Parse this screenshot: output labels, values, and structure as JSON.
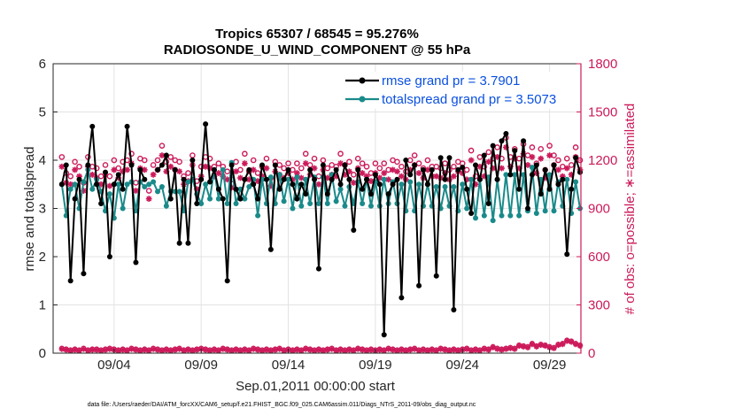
{
  "chart_data": {
    "type": "line",
    "title_line1": "Tropics 65307 / 68545 = 95.276%",
    "title_line2": "RADIOSONDE_U_WIND_COMPONENT @ 55 hPa",
    "xlabel": "Sep.01,2011 00:00:00 start",
    "ylabel_left": "rmse and totalspread",
    "ylabel_right": "# of obs: o=possible; ∗=assimilated",
    "xlim": [
      0.5,
      30.8
    ],
    "ylim_left": [
      0,
      6
    ],
    "ylim_right": [
      0,
      1800
    ],
    "x_ticks": [
      {
        "x": 4,
        "label": "09/04"
      },
      {
        "x": 9,
        "label": "09/09"
      },
      {
        "x": 14,
        "label": "09/14"
      },
      {
        "x": 19,
        "label": "09/19"
      },
      {
        "x": 24,
        "label": "09/24"
      },
      {
        "x": 29,
        "label": "09/29"
      }
    ],
    "y_ticks_left": [
      "0",
      "1",
      "2",
      "3",
      "4",
      "5",
      "6"
    ],
    "y_ticks_right": [
      "0",
      "300",
      "600",
      "900",
      "1200",
      "1500",
      "1800"
    ],
    "legend": [
      {
        "label": "rmse grand pr = 3.7901",
        "color": "#000000"
      },
      {
        "label": "totalspread grand pr = 3.5073",
        "color": "#1a8a8a"
      }
    ],
    "footer": "data file: /Users/raeder/DAI/ATM_forcXX/CAM6_setup/f.e21.FHIST_BGC.f09_025.CAM6assim.011/Diags_NTrS_2011-09/obs_diag_output.nc",
    "colors": {
      "rmse": "#000000",
      "spread": "#1a8a8a",
      "obs": "#cc1a5a"
    },
    "x": [
      1.0,
      1.25,
      1.5,
      1.75,
      2.0,
      2.25,
      2.5,
      2.75,
      3.0,
      3.25,
      3.5,
      3.75,
      4.0,
      4.25,
      4.5,
      4.75,
      5.0,
      5.25,
      5.5,
      5.75,
      6.0,
      6.25,
      6.5,
      6.75,
      7.0,
      7.25,
      7.5,
      7.75,
      8.0,
      8.25,
      8.5,
      8.75,
      9.0,
      9.25,
      9.5,
      9.75,
      10.0,
      10.25,
      10.5,
      10.75,
      11.0,
      11.25,
      11.5,
      11.75,
      12.0,
      12.25,
      12.5,
      12.75,
      13.0,
      13.25,
      13.5,
      13.75,
      14.0,
      14.25,
      14.5,
      14.75,
      15.0,
      15.25,
      15.5,
      15.75,
      16.0,
      16.25,
      16.5,
      16.75,
      17.0,
      17.25,
      17.5,
      17.75,
      18.0,
      18.25,
      18.5,
      18.75,
      19.0,
      19.25,
      19.5,
      19.75,
      20.0,
      20.25,
      20.5,
      20.75,
      21.0,
      21.25,
      21.5,
      21.75,
      22.0,
      22.25,
      22.5,
      22.75,
      23.0,
      23.25,
      23.5,
      23.75,
      24.0,
      24.25,
      24.5,
      24.75,
      25.0,
      25.25,
      25.5,
      25.75,
      26.0,
      26.25,
      26.5,
      26.75,
      27.0,
      27.25,
      27.5,
      27.75,
      28.0,
      28.25,
      28.5,
      28.75,
      29.0,
      29.25,
      29.5,
      29.75,
      30.0,
      30.25,
      30.5,
      30.75
    ],
    "rmse": [
      3.5,
      3.9,
      1.5,
      3.2,
      3.6,
      1.65,
      3.9,
      4.7,
      3.5,
      3.1,
      3.75,
      2.0,
      3.5,
      3.7,
      3.4,
      4.7,
      3.9,
      1.88,
      3.8,
      3.6,
      null,
      null,
      3.8,
      3.9,
      4.1,
      3.2,
      3.8,
      2.28,
      3.6,
      2.28,
      4.0,
      3.1,
      3.6,
      4.75,
      3.55,
      3.8,
      3.4,
      3.2,
      1.5,
      3.9,
      3.4,
      3.2,
      3.6,
      3.8,
      3.5,
      3.2,
      3.9,
      3.6,
      2.15,
      3.9,
      3.4,
      3.6,
      3.8,
      3.5,
      3.2,
      3.5,
      3.3,
      3.8,
      3.6,
      1.75,
      3.9,
      3.3,
      3.6,
      3.8,
      3.5,
      3.9,
      3.6,
      2.55,
      3.8,
      3.4,
      3.6,
      3.3,
      3.7,
      3.5,
      0.38,
      3.3,
      3.5,
      3.6,
      1.15,
      4.0,
      3.7,
      3.9,
      1.4,
      3.8,
      3.5,
      3.8,
      1.6,
      4.05,
      3.6,
      4.05,
      0.9,
      3.8,
      3.85,
      3.4,
      2.9,
      3.9,
      3.6,
      4.1,
      3.1,
      4.3,
      3.6,
      4.4,
      4.55,
      3.7,
      4.2,
      3.4,
      4.4,
      3.0,
      3.7,
      3.9,
      3.3,
      3.8,
      3.4,
      3.9,
      3.5,
      3.6,
      2.05,
      3.4,
      4.05,
      3.75,
      3.35,
      3.15
    ],
    "spread": [
      3.5,
      2.85,
      3.4,
      3.5,
      3.0,
      3.55,
      3.8,
      3.4,
      3.6,
      3.35,
      2.95,
      3.3,
      2.8,
      3.5,
      3.0,
      3.5,
      3.55,
      2.95,
      3.55,
      3.45,
      3.5,
      3.55,
      3.35,
      3.45,
      3.05,
      3.35,
      3.35,
      3.35,
      2.95,
      3.55,
      3.6,
      3.3,
      3.1,
      3.5,
      3.2,
      3.8,
      3.2,
      3.8,
      3.1,
      3.95,
      3.1,
      3.4,
      3.2,
      3.45,
      3.6,
      2.85,
      3.6,
      3.1,
      3.65,
      3.1,
      3.7,
      3.15,
      3.6,
      3.0,
      3.65,
      3.05,
      3.6,
      3.1,
      3.65,
      3.1,
      3.65,
      3.1,
      3.7,
      3.15,
      3.4,
      3.05,
      3.45,
      3.1,
      3.55,
      3.1,
      3.6,
      3.05,
      3.55,
      3.05,
      3.6,
      3.1,
      3.55,
      3.1,
      3.5,
      2.95,
      3.55,
      2.95,
      3.5,
      3.05,
      3.5,
      3.05,
      3.45,
      3.0,
      3.45,
      3.05,
      3.45,
      2.95,
      3.5,
      3.0,
      3.6,
      2.8,
      3.6,
      2.85,
      3.65,
      2.75,
      3.6,
      2.85,
      3.7,
      2.85,
      3.7,
      2.85,
      3.7,
      2.95,
      3.85,
      2.9,
      3.6,
      2.95,
      3.7,
      2.95,
      3.55,
      3.05,
      3.6,
      2.9,
      3.55,
      3.0,
      3.45,
      2.9
    ],
    "obs_possible": [
      1220,
      1120,
      1100,
      1190,
      1160,
      1060,
      1220,
      1160,
      1150,
      1100,
      1170,
      1100,
      1200,
      1150,
      1190,
      1200,
      1240,
      1060,
      1210,
      1200,
      1010,
      1170,
      1200,
      1290,
      1190,
      1220,
      1200,
      1190,
      1100,
      1120,
      1230,
      1070,
      1160,
      1220,
      1210,
      1160,
      1180,
      1160,
      1130,
      1080,
      1190,
      1140,
      1240,
      1130,
      1200,
      1120,
      1160,
      1210,
      1090,
      1190,
      1170,
      1150,
      1180,
      1140,
      1180,
      1150,
      1240,
      1170,
      1210,
      1100,
      1200,
      1150,
      1170,
      1160,
      1240,
      1170,
      1190,
      1110,
      1210,
      1180,
      1160,
      1120,
      1180,
      1150,
      1180,
      1140,
      1200,
      1190,
      1160,
      1130,
      1200,
      1230,
      1180,
      1150,
      1200,
      1160,
      1160,
      1150,
      1180,
      1140,
      1160,
      1190,
      1180,
      1140,
      1260,
      1100,
      1220,
      1160,
      1250,
      1210,
      1280,
      1210,
      1340,
      1220,
      1270,
      1210,
      1300,
      1230,
      1280,
      1180,
      1270,
      1140,
      1290,
      1230,
      1200,
      1160,
      1210,
      1170,
      1280,
      1200,
      1130,
      1180
    ],
    "obs_assimilated": [
      1160,
      1060,
      1050,
      1140,
      1100,
      1010,
      1160,
      1110,
      1090,
      1050,
      1110,
      1040,
      1140,
      1090,
      1130,
      1140,
      1180,
      1010,
      1150,
      1140,
      960,
      1110,
      1140,
      1230,
      1130,
      1160,
      1140,
      1130,
      1050,
      1070,
      1170,
      1020,
      1100,
      1160,
      1150,
      1100,
      1120,
      1100,
      1080,
      1030,
      1130,
      1090,
      1180,
      1080,
      1140,
      1070,
      1100,
      1150,
      1040,
      1130,
      1110,
      1090,
      1120,
      1080,
      1120,
      1090,
      1180,
      1110,
      1150,
      1050,
      1140,
      1090,
      1110,
      1100,
      1180,
      1110,
      1130,
      1060,
      1150,
      1120,
      1100,
      1070,
      1120,
      1090,
      1120,
      1080,
      1140,
      1130,
      1100,
      1080,
      1140,
      1170,
      1120,
      1090,
      1140,
      1100,
      1100,
      1090,
      1120,
      1080,
      1100,
      1130,
      1120,
      1080,
      1200,
      1050,
      1160,
      1100,
      1190,
      1150,
      1220,
      1150,
      1280,
      1160,
      1210,
      1150,
      1240,
      1170,
      1220,
      1120,
      1210,
      1090,
      1230,
      1170,
      1140,
      1100,
      1150,
      1110,
      1220,
      1140,
      1080,
      1120
    ],
    "obs_bottom_possible": [
      30,
      25,
      20,
      25,
      20,
      30,
      20,
      25,
      25,
      20,
      25,
      30,
      25,
      20,
      25,
      20,
      30,
      25,
      20,
      25,
      20,
      30,
      25,
      20,
      25,
      20,
      25,
      30,
      20,
      25,
      20,
      25,
      30,
      25,
      20,
      25,
      20,
      30,
      25,
      20,
      25,
      20,
      25,
      20,
      30,
      25,
      20,
      25,
      20,
      25,
      30,
      20,
      25,
      20,
      25,
      20,
      30,
      25,
      20,
      25,
      20,
      25,
      30,
      20,
      25,
      20,
      25,
      20,
      30,
      25,
      20,
      25,
      20,
      25,
      20,
      30,
      25,
      20,
      25,
      20,
      25,
      30,
      20,
      25,
      20,
      25,
      20,
      30,
      25,
      20,
      25,
      20,
      25,
      30,
      20,
      25,
      20,
      30,
      25,
      40,
      30,
      25,
      30,
      35,
      30,
      50,
      45,
      40,
      60,
      45,
      55,
      50,
      40,
      35,
      55,
      60,
      80,
      75,
      60,
      50,
      70,
      40
    ],
    "obs_bottom_assimilated": [
      25,
      20,
      15,
      20,
      15,
      25,
      15,
      20,
      20,
      15,
      20,
      25,
      20,
      15,
      20,
      15,
      25,
      20,
      15,
      20,
      15,
      25,
      20,
      15,
      20,
      15,
      20,
      25,
      15,
      20,
      15,
      20,
      25,
      20,
      15,
      20,
      15,
      25,
      20,
      15,
      20,
      15,
      20,
      15,
      25,
      20,
      15,
      20,
      15,
      20,
      25,
      15,
      20,
      15,
      20,
      15,
      25,
      20,
      15,
      20,
      15,
      20,
      25,
      15,
      20,
      15,
      20,
      15,
      25,
      20,
      15,
      20,
      15,
      20,
      15,
      25,
      20,
      15,
      20,
      15,
      20,
      25,
      15,
      20,
      15,
      20,
      15,
      25,
      20,
      15,
      20,
      15,
      20,
      25,
      15,
      20,
      15,
      25,
      20,
      35,
      25,
      20,
      25,
      30,
      25,
      45,
      40,
      35,
      55,
      40,
      50,
      45,
      35,
      30,
      50,
      55,
      75,
      70,
      55,
      45,
      65,
      35
    ]
  }
}
